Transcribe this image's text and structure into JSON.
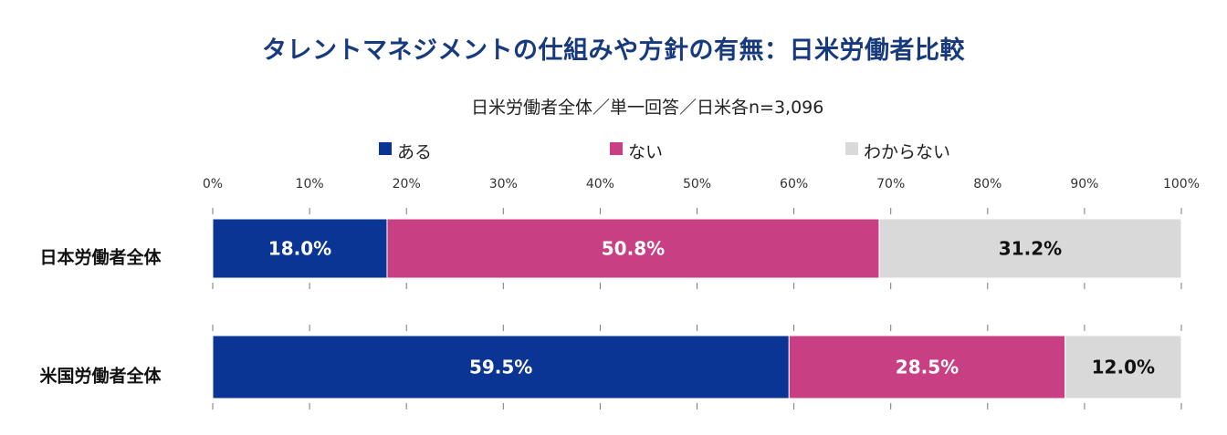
{
  "chart_data": {
    "type": "bar",
    "orientation": "horizontal",
    "stacked": true,
    "title": "タレントマネジメントの仕組みや方針の有無：日米労働者比較",
    "subtitle": "日米労働者全体／単一回答／日米各n=3,096",
    "categories": [
      "日本労働者全体",
      "米国労働者全体"
    ],
    "series": [
      {
        "name": "ある",
        "color": "#0b3595",
        "label_color": "#ffffff",
        "values": [
          18.0,
          59.5
        ]
      },
      {
        "name": "ない",
        "color": "#c84083",
        "label_color": "#ffffff",
        "values": [
          50.8,
          28.5
        ]
      },
      {
        "name": "わからない",
        "color": "#d9d9d9",
        "label_color": "#111111",
        "values": [
          31.2,
          12.0
        ]
      }
    ],
    "data_labels": [
      [
        "18.0%",
        "50.8%",
        "31.2%"
      ],
      [
        "59.5%",
        "28.5%",
        "12.0%"
      ]
    ],
    "xlim": [
      0,
      100
    ],
    "xticks": [
      "0%",
      "10%",
      "20%",
      "30%",
      "40%",
      "50%",
      "60%",
      "70%",
      "80%",
      "90%",
      "100%"
    ],
    "xlabel": "",
    "ylabel": "",
    "legend_position": "top",
    "grid": false
  }
}
